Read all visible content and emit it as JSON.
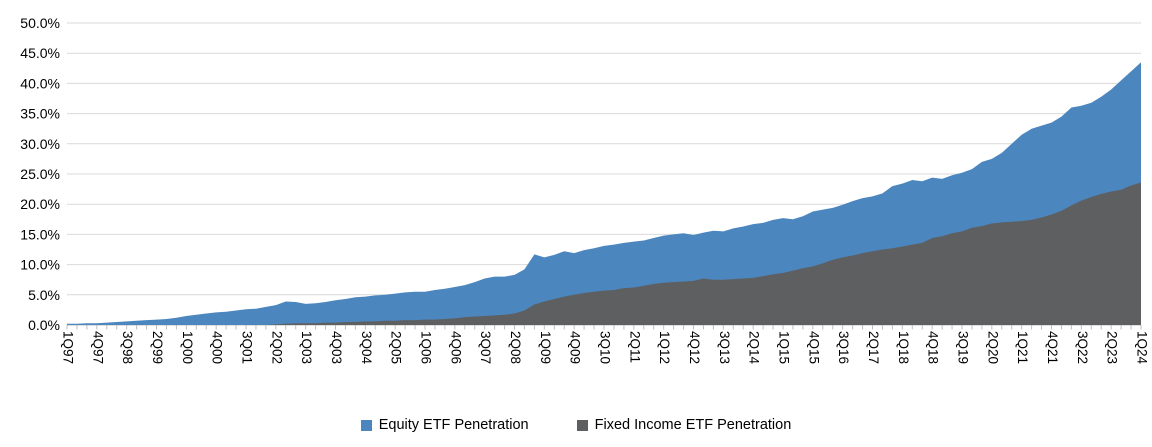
{
  "chart_data": {
    "type": "area",
    "title": "",
    "xlabel": "",
    "ylabel": "",
    "grid": true,
    "legend_position": "bottom",
    "overlap_note": "two overlapping areas (not stacked); fixed income drawn in front of equity",
    "y_axis": {
      "min": 0,
      "max": 50,
      "step": 5,
      "tick_labels": [
        "0.0%",
        "5.0%",
        "10.0%",
        "15.0%",
        "20.0%",
        "25.0%",
        "30.0%",
        "35.0%",
        "40.0%",
        "45.0%",
        "50.0%"
      ]
    },
    "x_axis": {
      "label_every_n": 3,
      "label_rotation_deg": 90,
      "first_label": "1Q97",
      "last_label": "1Q24"
    },
    "quarters": [
      "1Q97",
      "2Q97",
      "3Q97",
      "4Q97",
      "1Q98",
      "2Q98",
      "3Q98",
      "4Q98",
      "1Q99",
      "2Q99",
      "3Q99",
      "4Q99",
      "1Q00",
      "2Q00",
      "3Q00",
      "4Q00",
      "1Q01",
      "2Q01",
      "3Q01",
      "4Q01",
      "1Q02",
      "2Q02",
      "3Q02",
      "4Q02",
      "1Q03",
      "2Q03",
      "3Q03",
      "4Q03",
      "1Q04",
      "2Q04",
      "3Q04",
      "4Q04",
      "1Q05",
      "2Q05",
      "3Q05",
      "4Q05",
      "1Q06",
      "2Q06",
      "3Q06",
      "4Q06",
      "1Q07",
      "2Q07",
      "3Q07",
      "4Q07",
      "1Q08",
      "2Q08",
      "3Q08",
      "4Q08",
      "1Q09",
      "2Q09",
      "3Q09",
      "4Q09",
      "1Q10",
      "2Q10",
      "3Q10",
      "4Q10",
      "1Q11",
      "2Q11",
      "3Q11",
      "4Q11",
      "1Q12",
      "2Q12",
      "3Q12",
      "4Q12",
      "1Q13",
      "2Q13",
      "3Q13",
      "4Q13",
      "1Q14",
      "2Q14",
      "3Q14",
      "4Q14",
      "1Q15",
      "2Q15",
      "3Q15",
      "4Q15",
      "1Q16",
      "2Q16",
      "3Q16",
      "4Q16",
      "1Q17",
      "2Q17",
      "3Q17",
      "4Q17",
      "1Q18",
      "2Q18",
      "3Q18",
      "4Q18",
      "1Q19",
      "2Q19",
      "3Q19",
      "4Q19",
      "1Q20",
      "2Q20",
      "3Q20",
      "4Q20",
      "1Q21",
      "2Q21",
      "3Q21",
      "4Q21",
      "1Q22",
      "2Q22",
      "3Q22",
      "4Q22",
      "1Q23",
      "2Q23",
      "3Q23",
      "4Q23",
      "1Q24"
    ],
    "series": [
      {
        "name": "Equity ETF Penetration",
        "color": "#4C86BE",
        "values": [
          0.2,
          0.2,
          0.3,
          0.3,
          0.4,
          0.5,
          0.6,
          0.7,
          0.8,
          0.9,
          1.0,
          1.2,
          1.5,
          1.7,
          1.9,
          2.1,
          2.2,
          2.4,
          2.6,
          2.7,
          3.0,
          3.3,
          3.9,
          3.8,
          3.5,
          3.6,
          3.8,
          4.1,
          4.3,
          4.6,
          4.7,
          4.9,
          5.0,
          5.2,
          5.4,
          5.5,
          5.5,
          5.8,
          6.0,
          6.3,
          6.6,
          7.1,
          7.7,
          8.0,
          8.0,
          8.3,
          9.2,
          11.7,
          11.2,
          11.6,
          12.2,
          11.9,
          12.4,
          12.7,
          13.1,
          13.3,
          13.6,
          13.8,
          14.0,
          14.4,
          14.8,
          15.0,
          15.2,
          14.9,
          15.3,
          15.6,
          15.5,
          16.0,
          16.3,
          16.7,
          16.9,
          17.4,
          17.7,
          17.5,
          18.0,
          18.8,
          19.1,
          19.4,
          19.9,
          20.5,
          21.0,
          21.3,
          21.8,
          23.0,
          23.4,
          24.0,
          23.8,
          24.4,
          24.2,
          24.8,
          25.2,
          25.8,
          27.0,
          27.5,
          28.5,
          30.0,
          31.5,
          32.5,
          33.0,
          33.5,
          34.5,
          36.0,
          36.3,
          36.8,
          37.8,
          39.0,
          40.5,
          42.0,
          43.5
        ]
      },
      {
        "name": "Fixed Income ETF Penetration",
        "color": "#5E5F61",
        "values": [
          0.0,
          0.0,
          0.0,
          0.0,
          0.0,
          0.0,
          0.0,
          0.0,
          0.0,
          0.0,
          0.0,
          0.0,
          0.0,
          0.0,
          0.0,
          0.0,
          0.0,
          0.0,
          0.0,
          0.0,
          0.0,
          0.1,
          0.2,
          0.3,
          0.3,
          0.3,
          0.4,
          0.4,
          0.5,
          0.5,
          0.6,
          0.6,
          0.7,
          0.7,
          0.8,
          0.8,
          0.9,
          0.9,
          1.0,
          1.1,
          1.3,
          1.4,
          1.5,
          1.6,
          1.7,
          1.9,
          2.4,
          3.4,
          3.9,
          4.3,
          4.7,
          5.0,
          5.3,
          5.5,
          5.7,
          5.8,
          6.1,
          6.2,
          6.5,
          6.8,
          7.0,
          7.1,
          7.2,
          7.3,
          7.7,
          7.5,
          7.5,
          7.6,
          7.7,
          7.8,
          8.1,
          8.4,
          8.6,
          9.0,
          9.4,
          9.7,
          10.2,
          10.8,
          11.2,
          11.5,
          11.9,
          12.2,
          12.5,
          12.7,
          13.0,
          13.3,
          13.6,
          14.4,
          14.7,
          15.2,
          15.5,
          16.1,
          16.4,
          16.8,
          17.0,
          17.1,
          17.2,
          17.4,
          17.8,
          18.3,
          18.9,
          19.8,
          20.6,
          21.2,
          21.7,
          22.1,
          22.4,
          23.1,
          23.6
        ]
      }
    ]
  },
  "legend": {
    "items": [
      {
        "label": "Equity ETF Penetration",
        "color": "#4C86BE"
      },
      {
        "label": "Fixed Income ETF Penetration",
        "color": "#5E5F61"
      }
    ]
  },
  "style": {
    "gridline_color": "#D9D9D9",
    "axis_tick_color": "#BFBFBF",
    "background": "#FFFFFF",
    "text_color": "#000000"
  }
}
